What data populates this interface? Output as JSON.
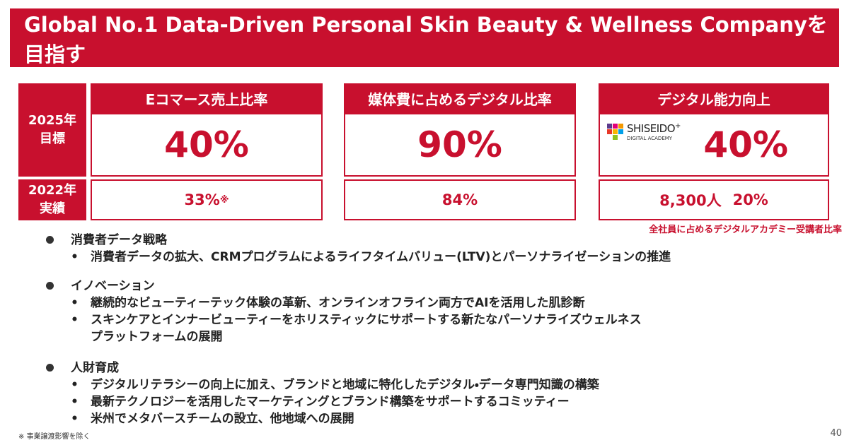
{
  "header": {
    "title": "Global No.1 Data-Driven Personal Skin Beauty & Wellness Companyを目指す"
  },
  "rows": {
    "target": "2025年\n目標",
    "actual": "2022年\n実績"
  },
  "columns": [
    {
      "heading": "Eコマース売上比率",
      "target": "40%",
      "actual": "33%",
      "actual_mark": "※"
    },
    {
      "heading": "媒体費に占めるデジタル比率",
      "target": "90%",
      "actual": "84%"
    },
    {
      "heading": "デジタル能力向上",
      "logo": {
        "name": "SHISEIDO",
        "plus": "+",
        "sub": "DIGITAL ACADEMY"
      },
      "target": "40%",
      "actual": "8,300人",
      "actual_2": "20%",
      "note": "全社員に占めるデジタルアカデミー受講者比率"
    }
  ],
  "sections": [
    {
      "heading": "消費者データ戦略",
      "items": [
        "消費者データの拡大、CRMプログラムによるライフタイムバリュー(LTV)とパーソナライゼーションの推進"
      ]
    },
    {
      "heading": "イノベーション",
      "items": [
        "継続的なビューティーテック体験の革新、オンラインオフライン両方でAIを活用した肌診断",
        "スキンケアとインナービューティーをホリスティックにサポートする新たなパーソナライズウェルネス\nプラットフォームの展開"
      ]
    },
    {
      "heading": "人財育成",
      "items": [
        "デジタルリテラシーの向上に加え、ブランドと地域に特化したデジタル・データ専門知識の構築",
        "最新テクノロジーを活用したマーケティングとブランド構築をサポートするコミッティー",
        "米州でメタバースチームの設立、他地域への展開"
      ]
    }
  ],
  "footer": {
    "note": "※ 事業譲渡影響を除く",
    "page": "40"
  }
}
